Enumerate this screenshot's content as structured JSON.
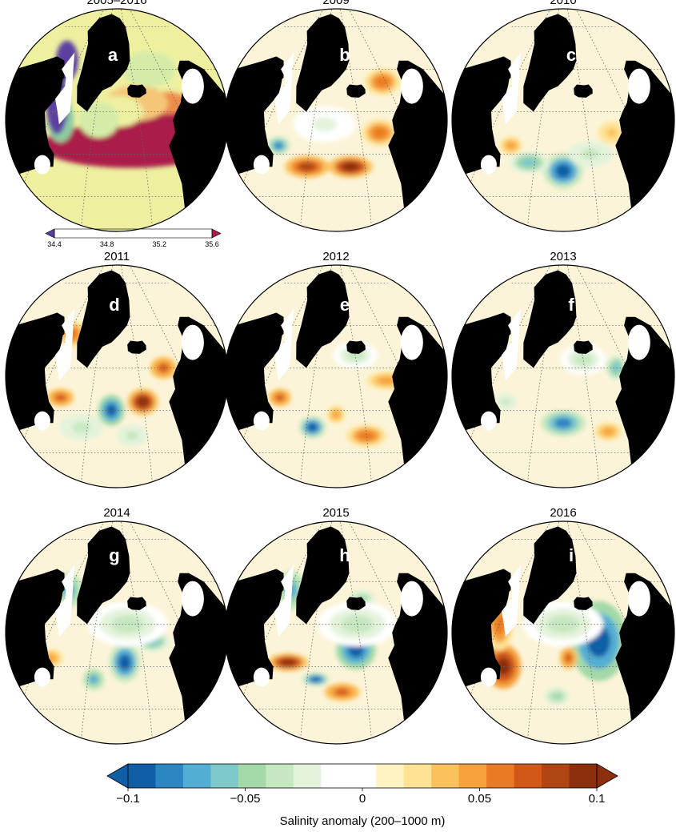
{
  "chart_data": {
    "type": "heatmap",
    "panels": [
      {
        "id": "a",
        "label": "a",
        "title": "2005–2016",
        "kind": "climatology",
        "blobs": [
          {
            "lon": -10,
            "lat": 57,
            "rx": 0.3,
            "ry": 0.09,
            "v": 35.6
          },
          {
            "lon": -25,
            "lat": 52,
            "rx": 0.4,
            "ry": 0.1,
            "v": 35.5
          },
          {
            "lon": -5,
            "lat": 62,
            "rx": 0.1,
            "ry": 0.05,
            "v": 35.3
          },
          {
            "lon": -20,
            "lat": 62,
            "rx": 0.14,
            "ry": 0.08,
            "v": 35.2
          },
          {
            "lon": -30,
            "lat": 60,
            "rx": 0.12,
            "ry": 0.07,
            "v": 35.0
          },
          {
            "lon": -38,
            "lat": 58,
            "rx": 0.09,
            "ry": 0.08,
            "v": 34.9
          },
          {
            "lon": -8,
            "lat": 70,
            "rx": 0.12,
            "ry": 0.08,
            "v": 34.95
          },
          {
            "lon": -55,
            "lat": 58,
            "rx": 0.06,
            "ry": 0.1,
            "v": 34.8
          },
          {
            "lon": -60,
            "lat": 62,
            "rx": 0.05,
            "ry": 0.14,
            "v": 34.5
          },
          {
            "lon": -68,
            "lat": 72,
            "rx": 0.05,
            "ry": 0.09,
            "v": 34.4
          }
        ]
      },
      {
        "id": "b",
        "label": "b",
        "title": "2009",
        "kind": "anomaly",
        "blobs": [
          {
            "lon": -40,
            "lat": 47,
            "rx": 0.1,
            "ry": 0.05,
            "v": 0.08
          },
          {
            "lon": -25,
            "lat": 47,
            "rx": 0.1,
            "ry": 0.05,
            "v": 0.09
          },
          {
            "lon": -12,
            "lat": 55,
            "rx": 0.08,
            "ry": 0.06,
            "v": 0.06
          },
          {
            "lon": -2,
            "lat": 67,
            "rx": 0.08,
            "ry": 0.06,
            "v": 0.06
          },
          {
            "lon": -52,
            "lat": 52,
            "rx": 0.05,
            "ry": 0.04,
            "v": -0.08
          },
          {
            "lon": -35,
            "lat": 57,
            "rx": 0.14,
            "ry": 0.08,
            "v": -0.02
          }
        ]
      },
      {
        "id": "c",
        "label": "c",
        "title": "2010",
        "kind": "anomaly",
        "blobs": [
          {
            "lon": -30,
            "lat": 46,
            "rx": 0.09,
            "ry": 0.08,
            "v": -0.09
          },
          {
            "lon": -42,
            "lat": 48,
            "rx": 0.09,
            "ry": 0.05,
            "v": -0.06
          },
          {
            "lon": -20,
            "lat": 50,
            "rx": 0.1,
            "ry": 0.06,
            "v": -0.04
          },
          {
            "lon": -10,
            "lat": 55,
            "rx": 0.06,
            "ry": 0.05,
            "v": 0.04
          },
          {
            "lon": -50,
            "lat": 52,
            "rx": 0.05,
            "ry": 0.04,
            "v": 0.05
          },
          {
            "lon": -40,
            "lat": 70,
            "rx": 0.05,
            "ry": 0.05,
            "v": 0.04
          }
        ]
      },
      {
        "id": "d",
        "label": "d",
        "title": "2011",
        "kind": "anomaly",
        "blobs": [
          {
            "lon": -32,
            "lat": 50,
            "rx": 0.06,
            "ry": 0.07,
            "v": -0.1
          },
          {
            "lon": -20,
            "lat": 52,
            "rx": 0.07,
            "ry": 0.06,
            "v": 0.09
          },
          {
            "lon": -8,
            "lat": 60,
            "rx": 0.06,
            "ry": 0.05,
            "v": 0.07
          },
          {
            "lon": -52,
            "lat": 53,
            "rx": 0.06,
            "ry": 0.04,
            "v": 0.07
          },
          {
            "lon": -58,
            "lat": 68,
            "rx": 0.06,
            "ry": 0.06,
            "v": 0.06
          },
          {
            "lon": -42,
            "lat": 46,
            "rx": 0.1,
            "ry": 0.06,
            "v": -0.04
          },
          {
            "lon": -25,
            "lat": 44,
            "rx": 0.07,
            "ry": 0.05,
            "v": -0.04
          }
        ]
      },
      {
        "id": "e",
        "label": "e",
        "title": "2012",
        "kind": "anomaly",
        "blobs": [
          {
            "lon": -38,
            "lat": 46,
            "rx": 0.06,
            "ry": 0.05,
            "v": -0.09
          },
          {
            "lon": -20,
            "lat": 44,
            "rx": 0.09,
            "ry": 0.05,
            "v": 0.06
          },
          {
            "lon": -8,
            "lat": 57,
            "rx": 0.09,
            "ry": 0.04,
            "v": 0.05
          },
          {
            "lon": -52,
            "lat": 53,
            "rx": 0.05,
            "ry": 0.04,
            "v": 0.07
          },
          {
            "lon": -30,
            "lat": 49,
            "rx": 0.04,
            "ry": 0.04,
            "v": 0.05
          },
          {
            "lon": -20,
            "lat": 63,
            "rx": 0.1,
            "ry": 0.06,
            "v": -0.03
          }
        ]
      },
      {
        "id": "f",
        "label": "f",
        "title": "2013",
        "kind": "anomaly",
        "blobs": [
          {
            "lon": -30,
            "lat": 47,
            "rx": 0.1,
            "ry": 0.06,
            "v": -0.08
          },
          {
            "lon": -5,
            "lat": 60,
            "rx": 0.05,
            "ry": 0.06,
            "v": -0.06
          },
          {
            "lon": -15,
            "lat": 45,
            "rx": 0.06,
            "ry": 0.04,
            "v": 0.05
          },
          {
            "lon": -52,
            "lat": 52,
            "rx": 0.05,
            "ry": 0.04,
            "v": -0.04
          },
          {
            "lon": -20,
            "lat": 62,
            "rx": 0.1,
            "ry": 0.07,
            "v": -0.03
          }
        ]
      },
      {
        "id": "g",
        "label": "g",
        "title": "2014",
        "kind": "anomaly",
        "blobs": [
          {
            "lon": -27,
            "lat": 51,
            "rx": 0.07,
            "ry": 0.09,
            "v": -0.09
          },
          {
            "lon": -15,
            "lat": 56,
            "rx": 0.08,
            "ry": 0.05,
            "v": -0.06
          },
          {
            "lon": -38,
            "lat": 47,
            "rx": 0.05,
            "ry": 0.05,
            "v": -0.07
          },
          {
            "lon": -60,
            "lat": 68,
            "rx": 0.06,
            "ry": 0.08,
            "v": -0.07
          },
          {
            "lon": -55,
            "lat": 52,
            "rx": 0.05,
            "ry": 0.04,
            "v": 0.05
          },
          {
            "lon": -25,
            "lat": 60,
            "rx": 0.18,
            "ry": 0.1,
            "v": -0.03
          }
        ]
      },
      {
        "id": "h",
        "label": "h",
        "title": "2015",
        "kind": "anomaly",
        "blobs": [
          {
            "lon": -22,
            "lat": 54,
            "rx": 0.09,
            "ry": 0.09,
            "v": -0.1
          },
          {
            "lon": -37,
            "lat": 47,
            "rx": 0.06,
            "ry": 0.03,
            "v": -0.09
          },
          {
            "lon": -48,
            "lat": 51,
            "rx": 0.09,
            "ry": 0.04,
            "v": 0.09
          },
          {
            "lon": -28,
            "lat": 44,
            "rx": 0.08,
            "ry": 0.04,
            "v": 0.07
          },
          {
            "lon": -15,
            "lat": 66,
            "rx": 0.06,
            "ry": 0.04,
            "v": -0.05
          },
          {
            "lon": -58,
            "lat": 68,
            "rx": 0.06,
            "ry": 0.09,
            "v": -0.07
          },
          {
            "lon": -20,
            "lat": 60,
            "rx": 0.18,
            "ry": 0.1,
            "v": -0.03
          }
        ]
      },
      {
        "id": "i",
        "label": "i",
        "title": "2016",
        "kind": "anomaly",
        "blobs": [
          {
            "lon": -15,
            "lat": 56,
            "rx": 0.13,
            "ry": 0.18,
            "v": -0.1
          },
          {
            "lon": -52,
            "lat": 50,
            "rx": 0.08,
            "ry": 0.1,
            "v": 0.1
          },
          {
            "lon": -60,
            "lat": 60,
            "rx": 0.06,
            "ry": 0.12,
            "v": 0.06
          },
          {
            "lon": -28,
            "lat": 52,
            "rx": 0.04,
            "ry": 0.05,
            "v": 0.07
          },
          {
            "lon": -35,
            "lat": 72,
            "rx": 0.05,
            "ry": 0.08,
            "v": 0.06
          },
          {
            "lon": -32,
            "lat": 43,
            "rx": 0.06,
            "ry": 0.04,
            "v": -0.05
          },
          {
            "lon": -30,
            "lat": 60,
            "rx": 0.18,
            "ry": 0.1,
            "v": -0.03
          }
        ]
      }
    ],
    "climatology_colorbar": {
      "ticks": [
        "34.4",
        "34.8",
        "35.2",
        "35.6"
      ],
      "range": [
        34.4,
        35.6
      ],
      "colors": [
        "#5b3fa0",
        "#3e6fb1",
        "#4ba3b3",
        "#8fcca2",
        "#d4eca8",
        "#eef0a0",
        "#f5c678",
        "#ef8c4c",
        "#d44c3c",
        "#aa1a4a"
      ]
    },
    "anomaly_colorbar": {
      "label": "Salinity anomaly (200–1000 m)",
      "ticks": [
        "−0.1",
        "−0.05",
        "0",
        "0.05",
        "0.1"
      ],
      "range": [
        -0.1,
        0.1
      ],
      "colors": [
        "#0f5ea6",
        "#2b86c2",
        "#52aed4",
        "#7ec9c9",
        "#a2d9a9",
        "#c6e8c0",
        "#e4f3dc",
        "#ffffff",
        "#ffffff",
        "#fff3c4",
        "#fee394",
        "#fbc15c",
        "#f6a13b",
        "#ea7a24",
        "#d2581a",
        "#b04514",
        "#8b2f0c"
      ]
    },
    "colors": {
      "land": "#000000",
      "ice": "#ffffff",
      "grid": "#666666",
      "zero": "#ffffff"
    }
  }
}
